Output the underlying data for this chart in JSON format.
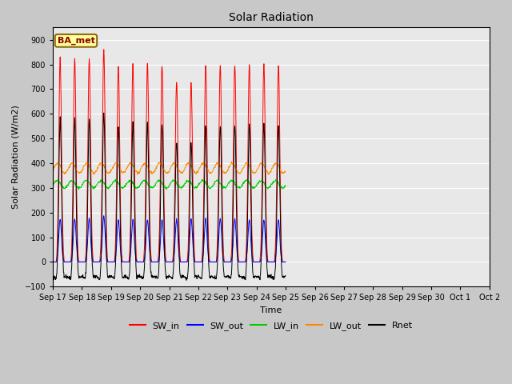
{
  "title": "Solar Radiation",
  "xlabel": "Time",
  "ylabel": "Solar Radiation (W/m2)",
  "ylim": [
    -100,
    950
  ],
  "yticks": [
    -100,
    0,
    100,
    200,
    300,
    400,
    500,
    600,
    700,
    800,
    900
  ],
  "fig_bg_color": "#c8c8c8",
  "plot_bg_color": "#e8e8e8",
  "annotation_text": "BA_met",
  "annotation_bg": "#ffff99",
  "annotation_border": "#8B6914",
  "legend_entries": [
    "SW_in",
    "SW_out",
    "LW_in",
    "LW_out",
    "Rnet"
  ],
  "line_colors": [
    "#ff0000",
    "#0000ff",
    "#00cc00",
    "#ff8800",
    "#000000"
  ],
  "n_days": 16,
  "day_labels": [
    "Sep 17",
    "Sep 18",
    "Sep 19",
    "Sep 20",
    "Sep 21",
    "Sep 22",
    "Sep 23",
    "Sep 24",
    "Sep 25",
    "Sep 26",
    "Sep 27",
    "Sep 28",
    "Sep 29",
    "Sep 30",
    "Oct 1",
    "Oct 2"
  ],
  "hours_per_day": 24,
  "sw_peaks": [
    825,
    825,
    825,
    860,
    790,
    800,
    800,
    800,
    730,
    730,
    800,
    800,
    800,
    800,
    800,
    795
  ],
  "sw_out_peaks": [
    175,
    175,
    175,
    185,
    170,
    170,
    170,
    170,
    170,
    175,
    175,
    175,
    175,
    170,
    170,
    170
  ],
  "lw_in_base": 315,
  "lw_in_amp": 15,
  "lw_out_base": 380,
  "lw_out_amp": 20,
  "solar_sigma": 2.2,
  "solar_half_day": 6.5,
  "noise_seed": 12
}
